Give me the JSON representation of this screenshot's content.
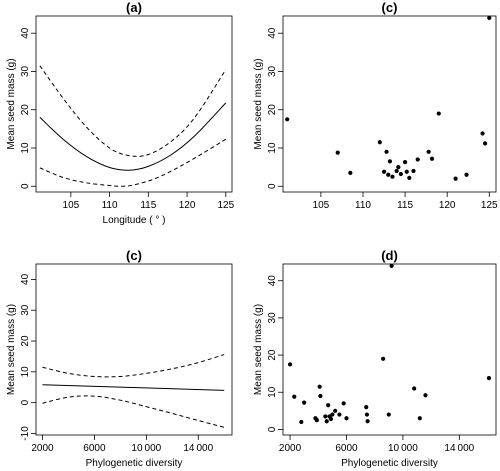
{
  "chart_data": [
    {
      "panel_label": "(a)",
      "type": "line",
      "xlabel": "Longitude ( ° )",
      "ylabel": "Mean seed mass (g)",
      "xlim": [
        100.5,
        125.8
      ],
      "ylim": [
        -1.5,
        44.5
      ],
      "x_ticks": [
        105,
        110,
        115,
        120,
        125
      ],
      "y_ticks": [
        0,
        10,
        20,
        30,
        40
      ],
      "series": [
        {
          "style": "solid",
          "points": [
            [
              101,
              18
            ],
            [
              104,
              12.3
            ],
            [
              107,
              7.8
            ],
            [
              110,
              4.9
            ],
            [
              112.5,
              4.2
            ],
            [
              115,
              5.2
            ],
            [
              118,
              8.3
            ],
            [
              121,
              13.2
            ],
            [
              125,
              21.8
            ]
          ]
        },
        {
          "style": "dashed",
          "points": [
            [
              101,
              31.5
            ],
            [
              104,
              23
            ],
            [
              107,
              15.5
            ],
            [
              110,
              10
            ],
            [
              112.5,
              8
            ],
            [
              115,
              8.3
            ],
            [
              118,
              11.8
            ],
            [
              121,
              18
            ],
            [
              125,
              30.5
            ]
          ]
        },
        {
          "style": "dashed",
          "points": [
            [
              101,
              4.8
            ],
            [
              104,
              2.3
            ],
            [
              107,
              0.9
            ],
            [
              110,
              0.2
            ],
            [
              111.5,
              0
            ],
            [
              113,
              0.3
            ],
            [
              116,
              2.1
            ],
            [
              120,
              6.2
            ],
            [
              125,
              12.3
            ]
          ]
        }
      ]
    },
    {
      "panel_label": "(c)",
      "type": "scatter",
      "xlabel": "",
      "ylabel": "Mean seed mass (g)",
      "xlim": [
        100.5,
        125.8
      ],
      "ylim": [
        -1.5,
        44.5
      ],
      "x_ticks": [
        105,
        110,
        115,
        120,
        125
      ],
      "y_ticks": [
        0,
        10,
        20,
        30,
        40
      ],
      "points": [
        [
          101,
          17.5
        ],
        [
          107,
          8.8
        ],
        [
          108.5,
          3.5
        ],
        [
          112,
          11.5
        ],
        [
          112.5,
          3.8
        ],
        [
          112.8,
          9
        ],
        [
          113,
          3
        ],
        [
          113.2,
          6.5
        ],
        [
          113.5,
          2.5
        ],
        [
          114,
          4
        ],
        [
          114.2,
          5
        ],
        [
          114.5,
          3.2
        ],
        [
          115,
          6.3
        ],
        [
          115.2,
          3.8
        ],
        [
          115.5,
          2.2
        ],
        [
          116,
          4
        ],
        [
          116.5,
          7
        ],
        [
          117.8,
          9
        ],
        [
          118.2,
          7.2
        ],
        [
          119,
          19
        ],
        [
          121,
          2
        ],
        [
          122.3,
          3
        ],
        [
          124.2,
          13.8
        ],
        [
          124.5,
          11.2
        ],
        [
          125,
          44
        ]
      ]
    },
    {
      "panel_label": "(c)",
      "type": "line",
      "xlabel": "Phylogenetic diversity",
      "ylabel": "Mean seed mass (g)",
      "xlim": [
        1500,
        16600
      ],
      "ylim": [
        -10.5,
        45
      ],
      "x_ticks": [
        2000,
        6000,
        10000,
        14000
      ],
      "y_ticks": [
        -10,
        0,
        10,
        20,
        30,
        40
      ],
      "series": [
        {
          "style": "solid",
          "points": [
            [
              2000,
              5.8
            ],
            [
              16000,
              4
            ]
          ]
        },
        {
          "style": "dashed",
          "points": [
            [
              2000,
              11.5
            ],
            [
              4000,
              9.5
            ],
            [
              6000,
              8.5
            ],
            [
              8000,
              8.5
            ],
            [
              10000,
              9.5
            ],
            [
              12000,
              11
            ],
            [
              14000,
              13
            ],
            [
              16000,
              15.6
            ]
          ]
        },
        {
          "style": "dashed",
          "points": [
            [
              2000,
              -0.2
            ],
            [
              4000,
              1.8
            ],
            [
              6000,
              2.1
            ],
            [
              8000,
              0.8
            ],
            [
              10000,
              -1.3
            ],
            [
              12000,
              -3.5
            ],
            [
              14000,
              -5.8
            ],
            [
              16000,
              -8
            ]
          ]
        }
      ]
    },
    {
      "panel_label": "(d)",
      "type": "scatter",
      "xlabel": "Phylogenetic diversity",
      "ylabel": "Mean seed mass (g)",
      "xlim": [
        1500,
        16600
      ],
      "ylim": [
        -1.5,
        44.5
      ],
      "x_ticks": [
        2000,
        6000,
        10000,
        14000
      ],
      "y_ticks": [
        0,
        10,
        20,
        30,
        40
      ],
      "points": [
        [
          2000,
          17.5
        ],
        [
          2300,
          8.8
        ],
        [
          2800,
          2
        ],
        [
          3000,
          7.2
        ],
        [
          3800,
          3
        ],
        [
          3900,
          2.5
        ],
        [
          4100,
          11.5
        ],
        [
          4150,
          9
        ],
        [
          4500,
          3.5
        ],
        [
          4600,
          2.2
        ],
        [
          4700,
          6.5
        ],
        [
          4800,
          3.5
        ],
        [
          4900,
          2.8
        ],
        [
          5000,
          4
        ],
        [
          5200,
          5
        ],
        [
          5500,
          4
        ],
        [
          5800,
          7
        ],
        [
          6000,
          3
        ],
        [
          7400,
          6
        ],
        [
          7450,
          4
        ],
        [
          7500,
          2.2
        ],
        [
          8600,
          19
        ],
        [
          9000,
          4
        ],
        [
          9200,
          44
        ],
        [
          10800,
          11
        ],
        [
          11200,
          3
        ],
        [
          11600,
          9.2
        ],
        [
          16100,
          13.8
        ]
      ]
    }
  ]
}
